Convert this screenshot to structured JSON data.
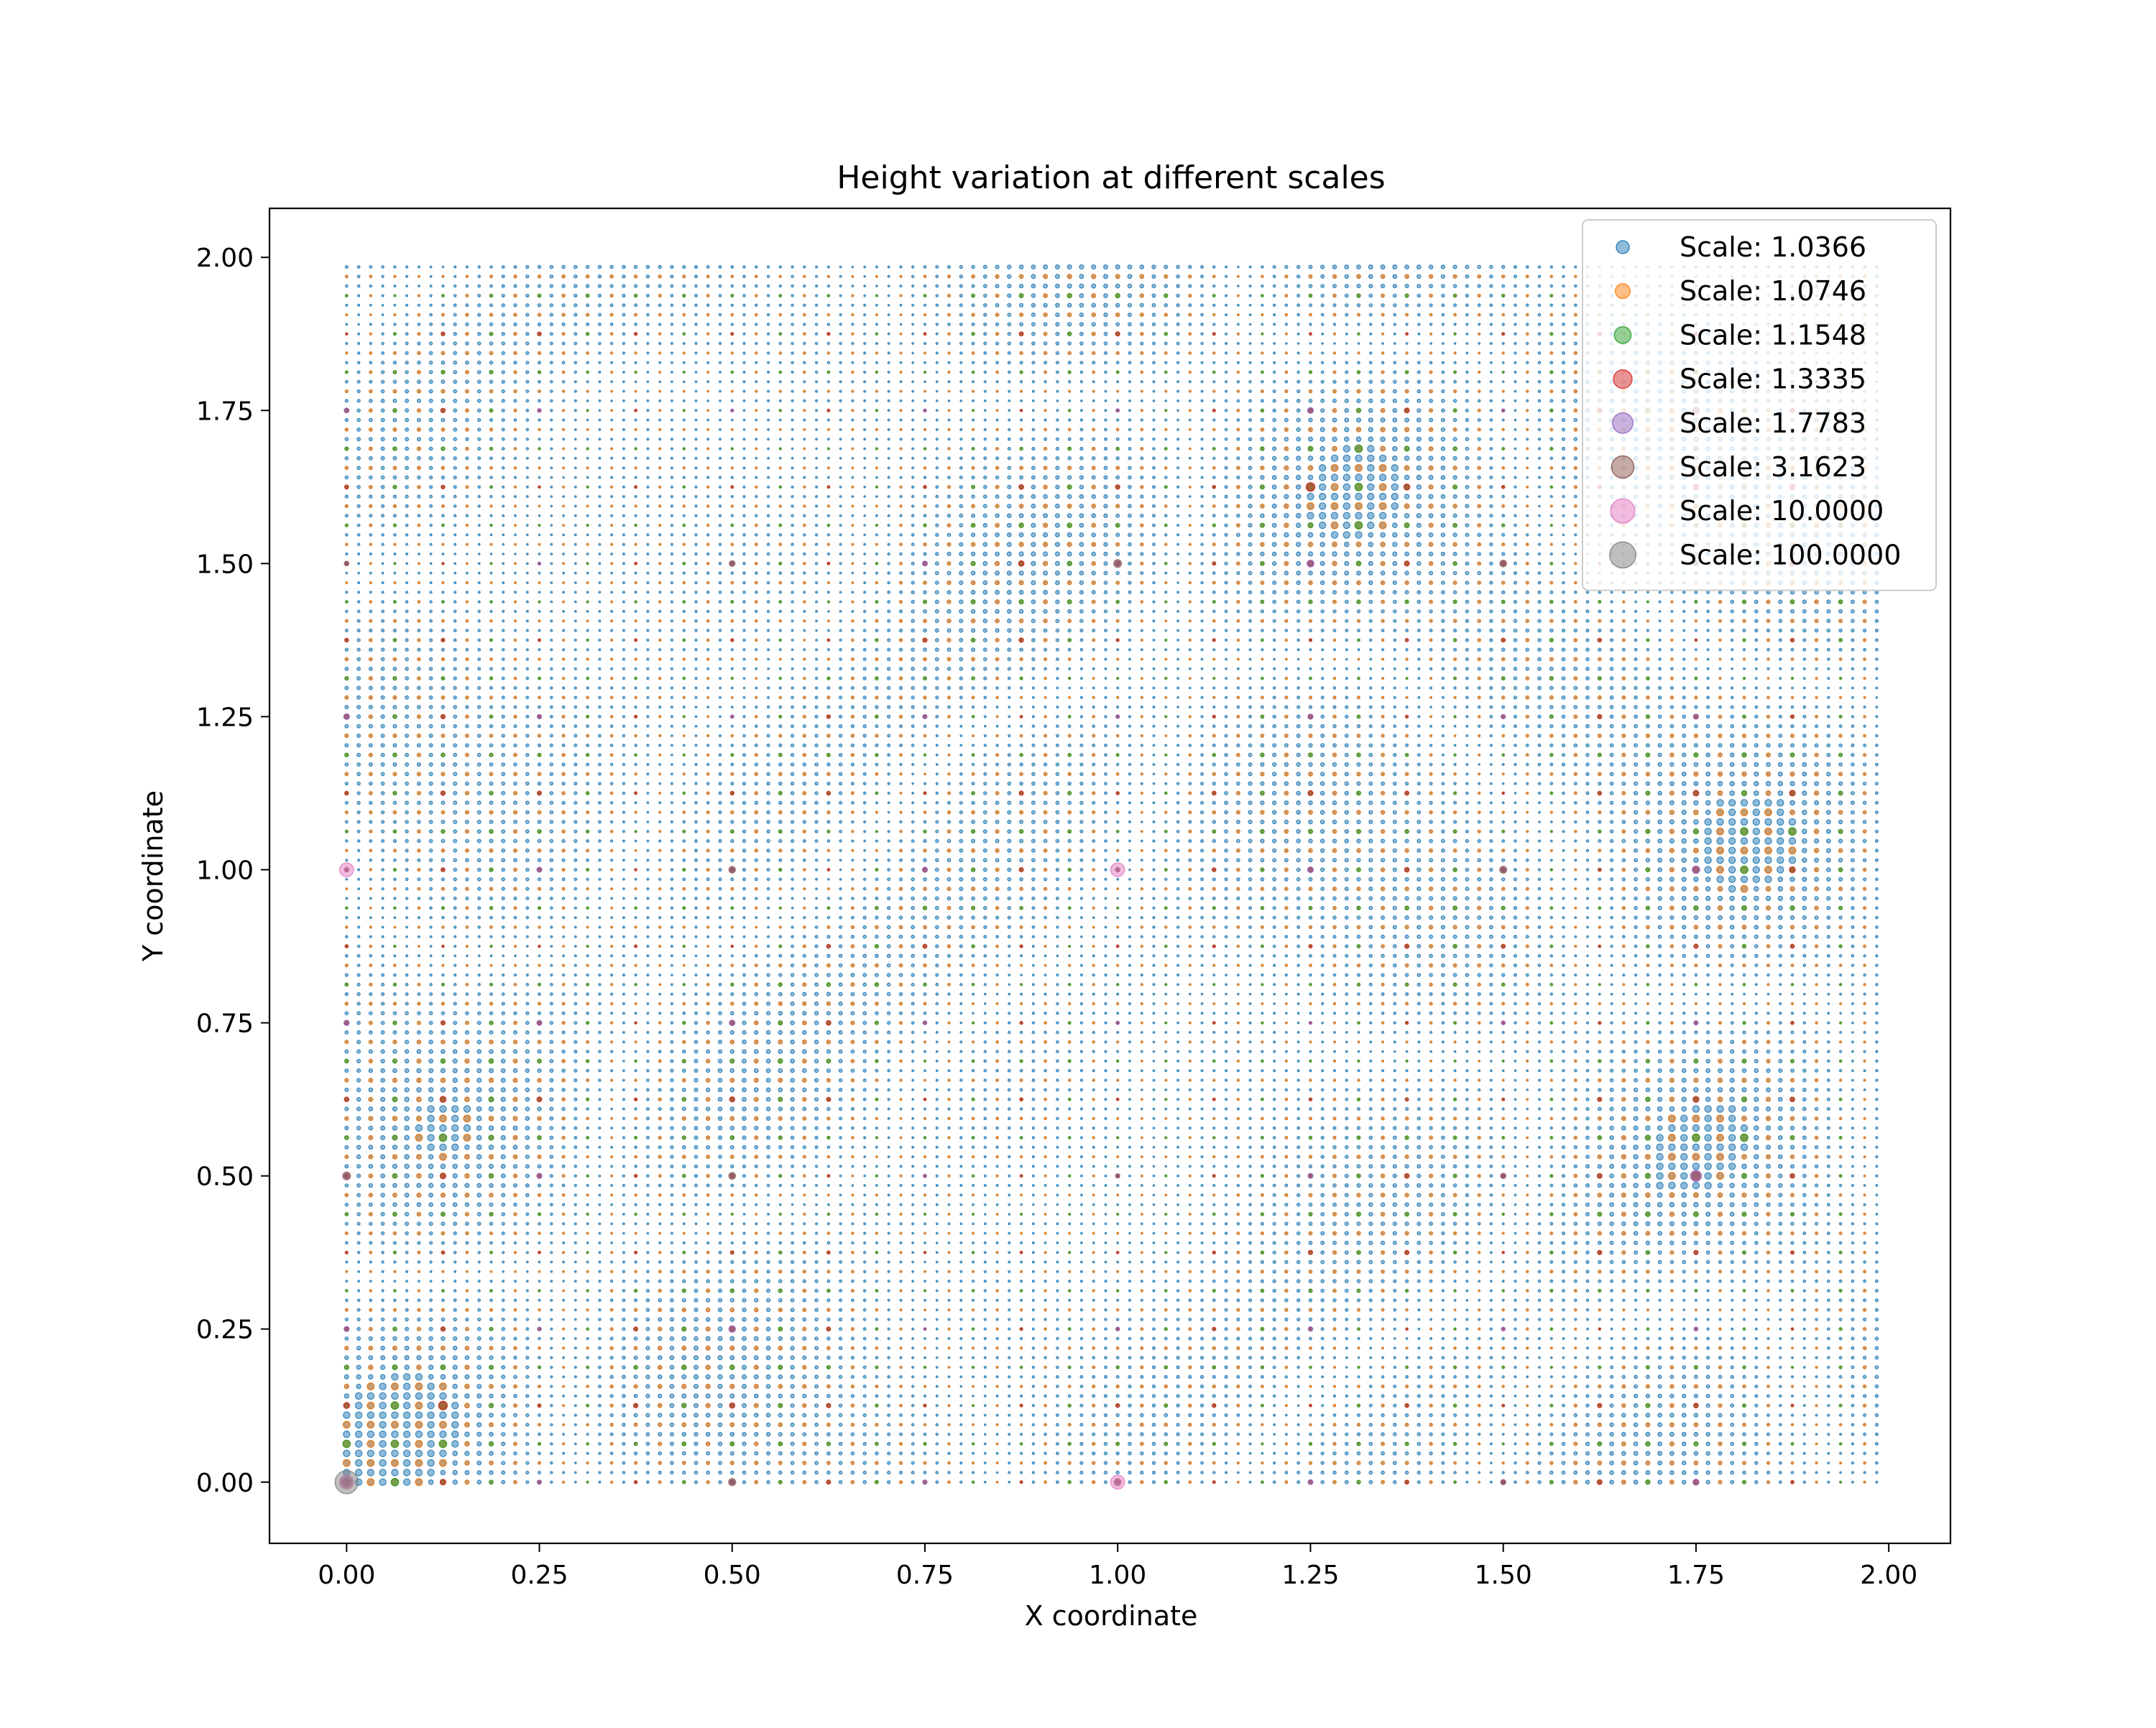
{
  "colors": {
    "background": "#ffffff",
    "axes": "#000000",
    "legend_frame": "#cccccc"
  },
  "chart_data": {
    "type": "scatter",
    "title": "Height variation at different scales",
    "xlabel": "X coordinate",
    "ylabel": "Y coordinate",
    "xlim": [
      -0.1,
      2.08
    ],
    "ylim": [
      -0.1,
      2.08
    ],
    "xticks": [
      0.0,
      0.25,
      0.5,
      0.75,
      1.0,
      1.25,
      1.5,
      1.75,
      2.0
    ],
    "xtick_labels": [
      "0.00",
      "0.25",
      "0.50",
      "0.75",
      "1.00",
      "1.25",
      "1.50",
      "1.75",
      "2.00"
    ],
    "yticks": [
      0.0,
      0.25,
      0.5,
      0.75,
      1.0,
      1.25,
      1.5,
      1.75,
      2.0
    ],
    "ytick_labels": [
      "0.00",
      "0.25",
      "0.50",
      "0.75",
      "1.00",
      "1.25",
      "1.50",
      "1.75",
      "2.00"
    ],
    "grid": false,
    "legend_position": "top-right",
    "marker_alpha": 0.5,
    "series": [
      {
        "name": "Scale: 1.0366",
        "scale": 1.0366,
        "color": "#1f77b4",
        "grid_step": 0.015625
      },
      {
        "name": "Scale: 1.0746",
        "scale": 1.0746,
        "color": "#ff7f0e",
        "grid_step": 0.03125
      },
      {
        "name": "Scale: 1.1548",
        "scale": 1.1548,
        "color": "#2ca02c",
        "grid_step": 0.0625
      },
      {
        "name": "Scale: 1.3335",
        "scale": 1.3335,
        "color": "#d62728",
        "grid_step": 0.125
      },
      {
        "name": "Scale: 1.7783",
        "scale": 1.7783,
        "color": "#9467bd",
        "grid_step": 0.25
      },
      {
        "name": "Scale: 3.1623",
        "scale": 3.1623,
        "color": "#8c564b",
        "grid_step": 0.5
      },
      {
        "name": "Scale: 10.0000",
        "scale": 10.0,
        "color": "#e377c2",
        "grid_step": 1.0
      },
      {
        "name": "Scale: 100.0000",
        "scale": 100.0,
        "color": "#7f7f7f",
        "grid_step": 2.0
      }
    ]
  }
}
